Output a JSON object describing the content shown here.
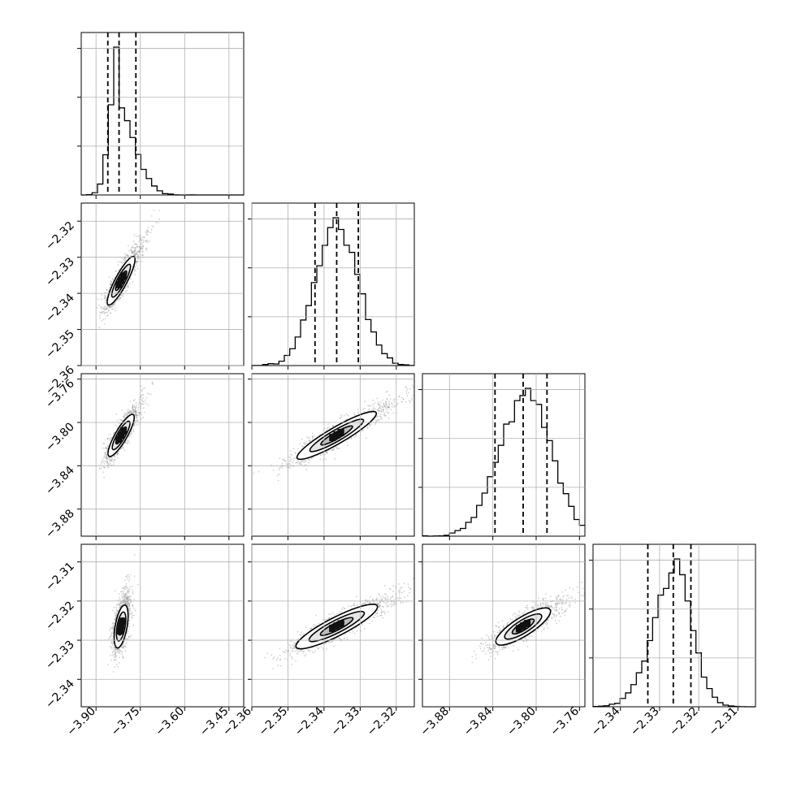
{
  "chart_data": {
    "type": "corner",
    "title": "",
    "grid": true,
    "parameters": [
      {
        "index": 0,
        "range": [
          -3.95,
          -3.4
        ],
        "median": -3.822,
        "quantiles": [
          -3.86,
          -3.822,
          -3.765
        ],
        "mode": -3.82,
        "sigma_left": 0.028,
        "sigma_right": 0.055,
        "ticks": [
          "-3.90",
          "-3.75",
          "-3.60",
          "-3.45"
        ]
      },
      {
        "index": 1,
        "range": [
          -2.36,
          -2.315
        ],
        "median": -2.3365,
        "quantiles": [
          -2.3425,
          -2.3365,
          -2.3305
        ],
        "mode": -2.3365,
        "sigma_left": 0.006,
        "sigma_right": 0.006,
        "ticks": [
          "-2.36",
          "-2.35",
          "-2.34",
          "-2.33",
          "-2.32"
        ]
      },
      {
        "index": 2,
        "range": [
          -3.905,
          -3.755
        ],
        "median": -3.812,
        "quantiles": [
          -3.838,
          -3.812,
          -3.79
        ],
        "mode": -3.81,
        "sigma_left": 0.024,
        "sigma_right": 0.023,
        "ticks": [
          "-3.88",
          "-3.84",
          "-3.80",
          "-3.76"
        ]
      },
      {
        "index": 3,
        "range": [
          -2.347,
          -2.3055
        ],
        "median": -2.3265,
        "quantiles": [
          -2.333,
          -2.3265,
          -2.322
        ],
        "mode": -2.3265,
        "sigma_left": 0.0055,
        "sigma_right": 0.0045,
        "ticks": [
          "-2.34",
          "-2.33",
          "-2.32",
          "-2.31"
        ]
      }
    ],
    "histogram_y_tick_count": 3,
    "left_axis_ticks": [
      [
        "-2.32",
        "-2.33",
        "-2.34",
        "-2.35",
        "-2.36"
      ],
      [
        "-3.76",
        "-3.80",
        "-3.84",
        "-3.88"
      ],
      [
        "-2.31",
        "-2.32",
        "-2.33",
        "-2.34"
      ]
    ],
    "pairs": [
      {
        "x": 0,
        "y": 1,
        "center": [
          -3.815,
          -2.3365
        ],
        "extent": [
          0.038,
          0.0075
        ],
        "angle_deg": -62
      },
      {
        "x": 0,
        "y": 2,
        "center": [
          -3.815,
          -3.812
        ],
        "extent": [
          0.038,
          0.022
        ],
        "angle_deg": -60
      },
      {
        "x": 1,
        "y": 2,
        "center": [
          -2.3365,
          -3.812
        ],
        "extent": [
          0.0125,
          0.0145
        ],
        "angle_deg": -30
      },
      {
        "x": 0,
        "y": 3,
        "center": [
          -3.815,
          -2.3265
        ],
        "extent": [
          0.038,
          0.0055
        ],
        "angle_deg": -80
      },
      {
        "x": 1,
        "y": 3,
        "center": [
          -2.3365,
          -2.3265
        ],
        "extent": [
          0.0125,
          0.0045
        ],
        "angle_deg": -27
      },
      {
        "x": 2,
        "y": 3,
        "center": [
          -3.812,
          -2.3265
        ],
        "extent": [
          0.029,
          0.0045
        ],
        "angle_deg": -32
      }
    ]
  }
}
